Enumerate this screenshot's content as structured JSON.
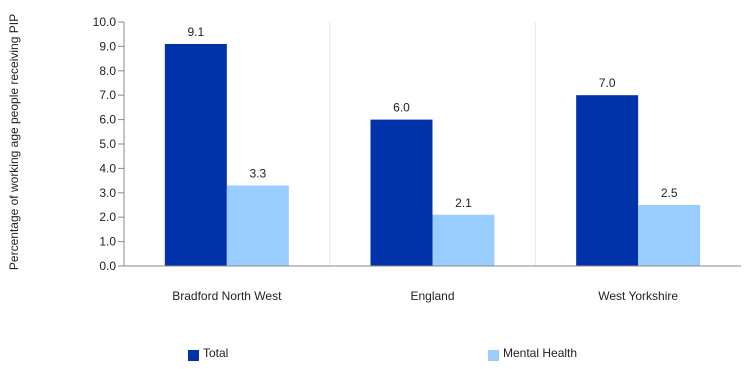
{
  "chart_data": {
    "type": "bar",
    "categories": [
      "Bradford North West",
      "England",
      "West Yorkshire"
    ],
    "series": [
      {
        "name": "Total",
        "values": [
          9.1,
          6.0,
          7.0
        ],
        "color": "#0033aa"
      },
      {
        "name": "Mental Health",
        "values": [
          3.3,
          2.1,
          2.5
        ],
        "color": "#99ccff"
      }
    ],
    "ylabel": "Percentage of working age people receiving PIP",
    "ylim": [
      0,
      10
    ],
    "yticks": [
      "0.0",
      "1.0",
      "2.0",
      "3.0",
      "4.0",
      "5.0",
      "6.0",
      "7.0",
      "8.0",
      "9.0",
      "10.0"
    ],
    "grid": true,
    "legend_position": "bottom",
    "axis_color": "#888888",
    "grid_color": "#e6e6e6"
  }
}
